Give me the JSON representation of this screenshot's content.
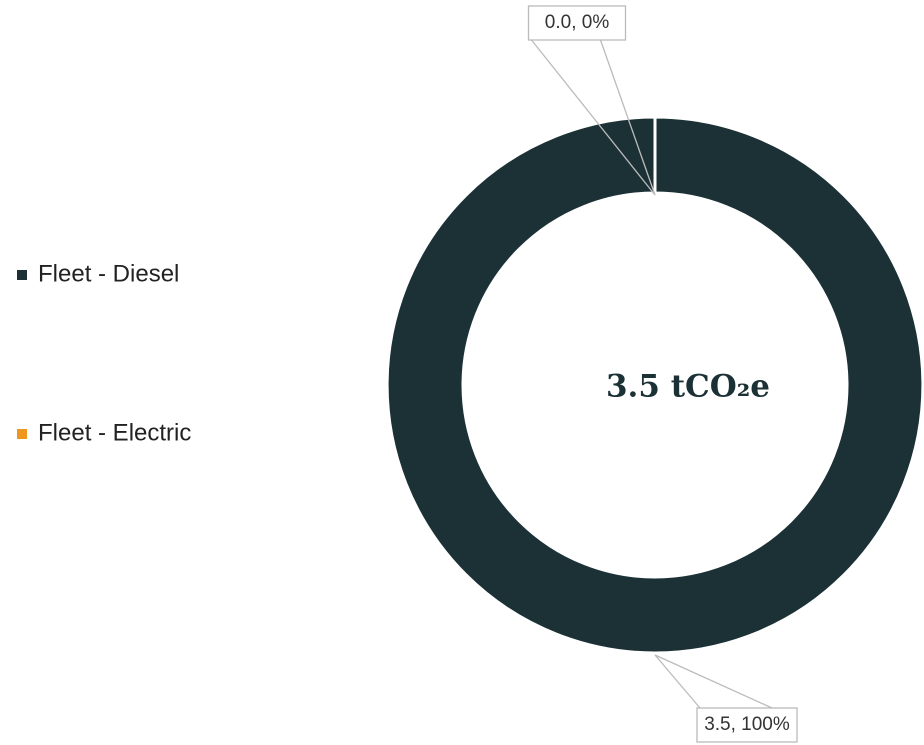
{
  "chart_data": {
    "type": "donut",
    "categories": [
      "Fleet - Diesel",
      "Fleet - Electric"
    ],
    "values": [
      3.5,
      0.0
    ],
    "value_labels": [
      "3.5, 100%",
      "0.0, 0%"
    ],
    "colors": [
      "#1c3136",
      "#f0961e"
    ],
    "center_label": "3.5 tCO₂e",
    "legend": "left"
  }
}
